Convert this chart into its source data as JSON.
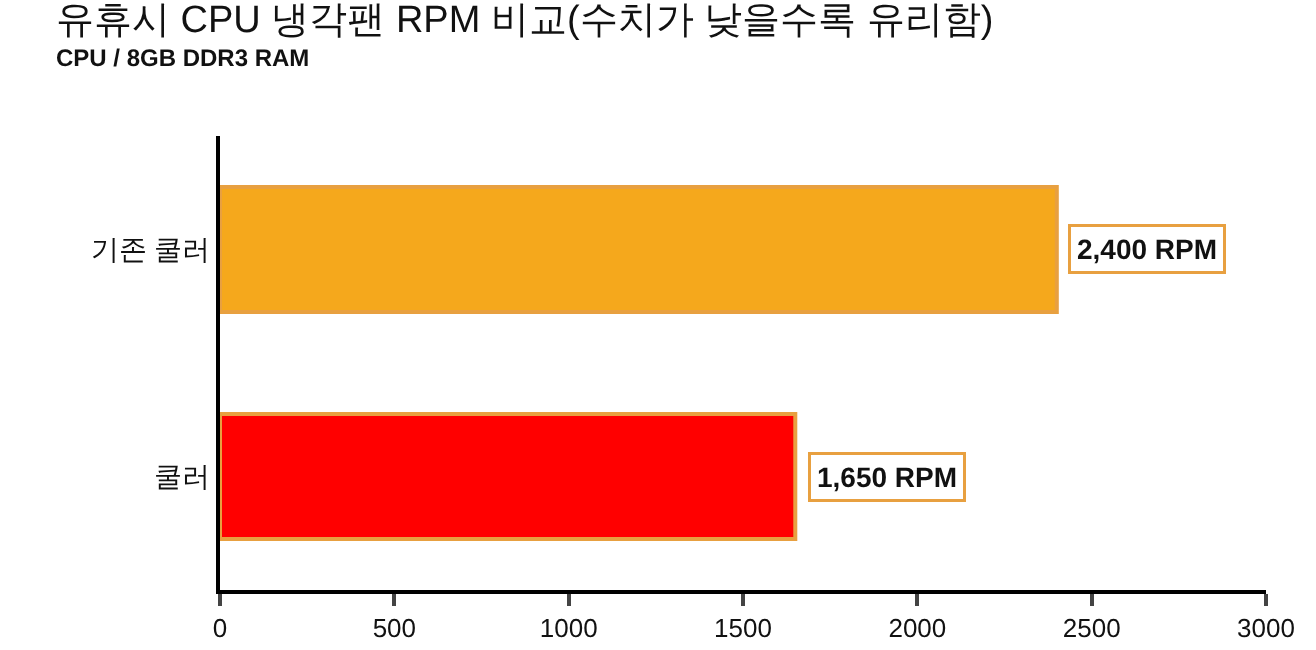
{
  "chart_data": {
    "type": "bar",
    "orientation": "horizontal",
    "title": "유휴시 CPU 냉각팬 RPM 비교(수치가 낮을수록 유리함)",
    "subtitle": "CPU / 8GB DDR3 RAM",
    "categories": [
      "기존 쿨러",
      "쿨러"
    ],
    "values": [
      2400,
      1650
    ],
    "colors": [
      "#f5a81c",
      "#ff0000"
    ],
    "value_labels": [
      "2,400 RPM",
      "1,650 RPM"
    ],
    "xlim": [
      0,
      3000
    ],
    "xticks": [
      0,
      500,
      1000,
      1500,
      2000,
      2500,
      3000
    ],
    "grid": false,
    "legend": false
  }
}
